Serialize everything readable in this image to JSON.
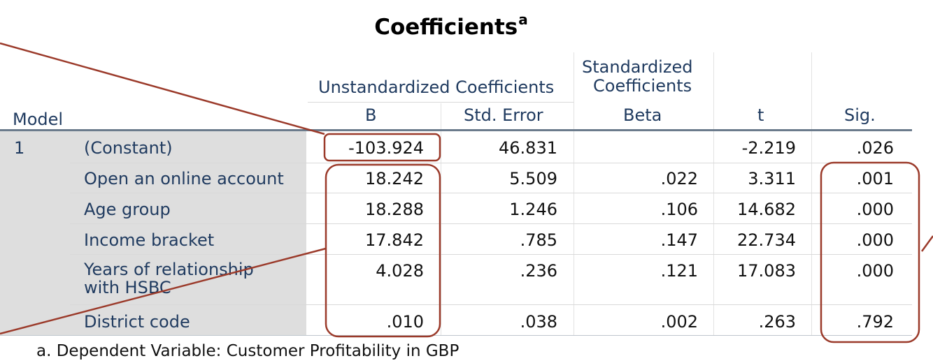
{
  "title": "Coefficients",
  "title_superscript": "a",
  "headers": {
    "model": "Model",
    "unstandardized_group": "Unstandardized Coefficients",
    "standardized_group_line1": "Standardized",
    "standardized_group_line2": "Coefficients",
    "b": "B",
    "std_error": "Std. Error",
    "beta": "Beta",
    "t": "t",
    "sig": "Sig."
  },
  "model_number": "1",
  "rows": [
    {
      "label": "(Constant)",
      "b": "-103.924",
      "se": "46.831",
      "beta": "",
      "t": "-2.219",
      "sig": ".026"
    },
    {
      "label": "Open an online account",
      "b": "18.242",
      "se": "5.509",
      "beta": ".022",
      "t": "3.311",
      "sig": ".001"
    },
    {
      "label": "Age group",
      "b": "18.288",
      "se": "1.246",
      "beta": ".106",
      "t": "14.682",
      "sig": ".000"
    },
    {
      "label": "Income bracket",
      "b": "17.842",
      "se": ".785",
      "beta": ".147",
      "t": "22.734",
      "sig": ".000"
    },
    {
      "label": "Years of relationship",
      "label_line2": "with HSBC",
      "b": "4.028",
      "se": ".236",
      "beta": ".121",
      "t": "17.083",
      "sig": ".000"
    },
    {
      "label": "District code",
      "b": ".010",
      "se": ".038",
      "beta": ".002",
      "t": ".263",
      "sig": ".792"
    }
  ],
  "footnote": "a. Dependent Variable: Customer Profitability in GBP",
  "colors": {
    "annotation": "#9b3a2a",
    "header_text": "#1f3a5f",
    "row_label_bg": "#dedede",
    "rule": "#6b7b8c"
  }
}
